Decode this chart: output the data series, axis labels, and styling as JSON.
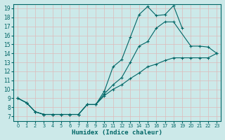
{
  "xlabel": "Humidex (Indice chaleur)",
  "bg_color": "#cce9e9",
  "grid_color": "#aadddd",
  "line_color": "#006666",
  "xlim": [
    -0.5,
    23.5
  ],
  "ylim": [
    6.5,
    19.5
  ],
  "xticks": [
    0,
    1,
    2,
    3,
    4,
    5,
    6,
    7,
    8,
    9,
    10,
    11,
    12,
    13,
    14,
    15,
    16,
    17,
    18,
    19,
    20,
    21,
    22,
    23
  ],
  "yticks": [
    7,
    8,
    9,
    10,
    11,
    12,
    13,
    14,
    15,
    16,
    17,
    18,
    19
  ],
  "lines": [
    {
      "x": [
        0,
        1,
        2,
        3,
        4,
        5,
        6,
        7,
        8,
        9,
        10,
        11,
        12,
        13,
        14,
        15,
        16,
        17,
        18,
        19
      ],
      "y": [
        9,
        8.5,
        7.5,
        7.2,
        7.2,
        7.2,
        7.2,
        7.2,
        8.3,
        8.3,
        9.8,
        12.5,
        13.3,
        15.8,
        18.3,
        19.2,
        18.2,
        18.3,
        19.3,
        16.8
      ]
    },
    {
      "x": [
        0,
        1,
        2,
        3,
        4,
        5,
        6,
        7,
        8,
        9,
        10,
        11,
        12,
        13,
        14,
        15,
        16,
        17,
        18,
        20,
        21,
        22,
        23
      ],
      "y": [
        9.0,
        8.5,
        7.5,
        7.2,
        7.2,
        7.2,
        7.2,
        7.2,
        8.3,
        8.3,
        9.5,
        10.5,
        11.3,
        13.0,
        14.8,
        15.3,
        16.8,
        17.5,
        17.5,
        14.8,
        14.8,
        14.7,
        14.0
      ]
    },
    {
      "x": [
        0,
        1,
        2,
        3,
        4,
        5,
        6,
        7,
        8,
        9,
        10,
        11,
        12,
        13,
        14,
        15,
        16,
        17,
        18,
        19,
        20,
        21,
        22,
        23
      ],
      "y": [
        9.0,
        8.5,
        7.5,
        7.2,
        7.2,
        7.2,
        7.2,
        7.2,
        8.3,
        8.3,
        9.3,
        10.0,
        10.5,
        11.2,
        11.8,
        12.5,
        12.8,
        13.2,
        13.5,
        13.5,
        13.5,
        13.5,
        13.5,
        14.0
      ]
    }
  ]
}
